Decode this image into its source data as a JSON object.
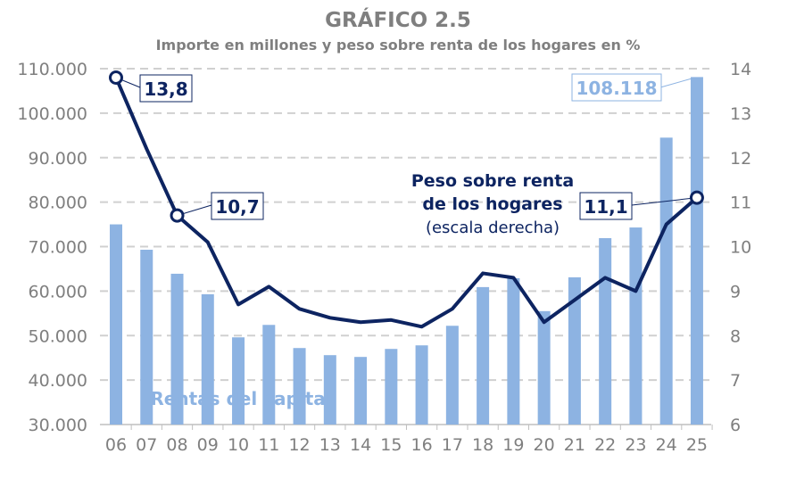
{
  "chart_data": {
    "type": "bar+line",
    "title": "GRÁFICO 2.5",
    "subtitle": "Importe en millones y peso sobre renta de los hogares en %",
    "categories": [
      "06",
      "07",
      "08",
      "09",
      "10",
      "11",
      "12",
      "13",
      "14",
      "15",
      "16",
      "17",
      "18",
      "19",
      "20",
      "21",
      "22",
      "23",
      "24",
      "25"
    ],
    "series": [
      {
        "name": "Rentas del capital",
        "type": "bar",
        "axis": "left",
        "color": "#8db3e2",
        "values": [
          75000,
          69300,
          63900,
          59300,
          49600,
          52400,
          47200,
          45600,
          45200,
          47000,
          47800,
          52200,
          60900,
          62900,
          55500,
          63100,
          71900,
          74300,
          94500,
          108118
        ]
      },
      {
        "name": "Peso sobre renta de los hogares",
        "name_note": "(escala derecha)",
        "type": "line",
        "axis": "right",
        "color": "#0d2461",
        "values": [
          13.8,
          12.2,
          10.7,
          10.1,
          8.7,
          9.1,
          8.6,
          8.4,
          8.3,
          8.35,
          8.2,
          8.6,
          9.4,
          9.3,
          8.3,
          8.8,
          9.3,
          9.0,
          10.5,
          11.1
        ]
      }
    ],
    "left_axis": {
      "range": [
        30000,
        110000
      ],
      "ticks": [
        "30.000",
        "40.000",
        "50.000",
        "60.000",
        "70.000",
        "80.000",
        "90.000",
        "100.000",
        "110.000"
      ]
    },
    "right_axis": {
      "range": [
        6,
        14
      ],
      "ticks": [
        "6",
        "7",
        "8",
        "9",
        "10",
        "11",
        "12",
        "13",
        "14"
      ]
    },
    "grid": "horizontal dashed",
    "annotations": [
      {
        "text": "13,8",
        "series": 1,
        "index": 0
      },
      {
        "text": "10,7",
        "series": 1,
        "index": 2
      },
      {
        "text": "11,1",
        "series": 1,
        "index": 19
      },
      {
        "text": "108.118",
        "series": 0,
        "index": 19
      }
    ],
    "labels": {
      "bar_label": "Rentas del capital",
      "line_label_1": "Peso sobre renta",
      "line_label_2": "de los hogares",
      "line_label_3": "(escala derecha)"
    }
  }
}
